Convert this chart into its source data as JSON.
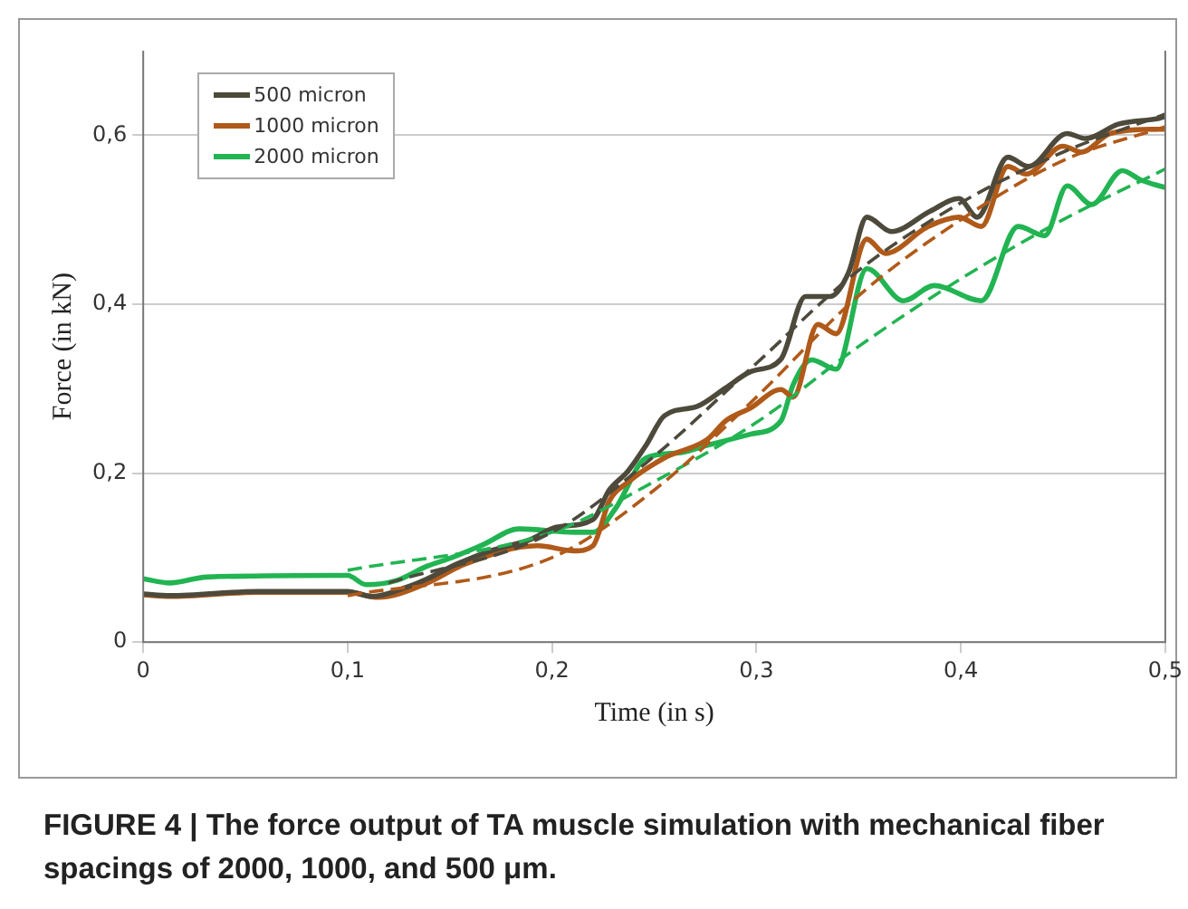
{
  "chart_data": {
    "type": "line",
    "xlabel": "Time (in s)",
    "ylabel": "Force (in kN)",
    "xlim": [
      0,
      0.5
    ],
    "ylim": [
      0,
      0.7
    ],
    "xticks": [
      {
        "value": 0,
        "label": "0"
      },
      {
        "value": 0.1,
        "label": "0,1"
      },
      {
        "value": 0.2,
        "label": "0,2"
      },
      {
        "value": 0.3,
        "label": "0,3"
      },
      {
        "value": 0.4,
        "label": "0,4"
      },
      {
        "value": 0.5,
        "label": "0,5"
      }
    ],
    "yticks": [
      {
        "value": 0,
        "label": "0"
      },
      {
        "value": 0.2,
        "label": "0,2"
      },
      {
        "value": 0.4,
        "label": "0,4"
      },
      {
        "value": 0.6,
        "label": "0,6"
      }
    ],
    "grid": "y",
    "legend": "top left",
    "marker": "none",
    "line_style": "solid",
    "annotations": [
      "FIGURE 4 | The force output of TA muscle simulation with mechanical fiber spacings of 2000, 1000, and 500 μm."
    ],
    "series": [
      {
        "name": "500 micron",
        "color": "#4d4a3c",
        "x": [
          0,
          0.013,
          0.056,
          0.1,
          0.112,
          0.13,
          0.139,
          0.154,
          0.17,
          0.19,
          0.202,
          0.22,
          0.228,
          0.237,
          0.246,
          0.255,
          0.271,
          0.285,
          0.297,
          0.312,
          0.324,
          0.336,
          0.345,
          0.354,
          0.366,
          0.385,
          0.399,
          0.408,
          0.423,
          0.433,
          0.452,
          0.461,
          0.477,
          0.497,
          0.5
        ],
        "values": [
          0.057,
          0.055,
          0.06,
          0.06,
          0.054,
          0.066,
          0.075,
          0.093,
          0.108,
          0.122,
          0.136,
          0.145,
          0.18,
          0.202,
          0.233,
          0.268,
          0.279,
          0.301,
          0.32,
          0.335,
          0.409,
          0.409,
          0.437,
          0.503,
          0.486,
          0.51,
          0.525,
          0.503,
          0.574,
          0.563,
          0.602,
          0.596,
          0.613,
          0.62,
          0.622
        ]
      },
      {
        "name": "1000 micron",
        "color": "#b05a1a",
        "x": [
          0,
          0.013,
          0.056,
          0.1,
          0.115,
          0.139,
          0.157,
          0.193,
          0.211,
          0.22,
          0.228,
          0.237,
          0.255,
          0.276,
          0.285,
          0.297,
          0.312,
          0.318,
          0.33,
          0.339,
          0.354,
          0.363,
          0.384,
          0.399,
          0.41,
          0.423,
          0.432,
          0.45,
          0.459,
          0.473,
          0.497,
          0.5
        ],
        "values": [
          0.056,
          0.054,
          0.059,
          0.059,
          0.053,
          0.07,
          0.092,
          0.114,
          0.108,
          0.114,
          0.167,
          0.189,
          0.218,
          0.24,
          0.262,
          0.277,
          0.299,
          0.29,
          0.376,
          0.365,
          0.477,
          0.46,
          0.492,
          0.503,
          0.492,
          0.563,
          0.554,
          0.587,
          0.58,
          0.602,
          0.607,
          0.607
        ]
      },
      {
        "name": "2000 micron",
        "color": "#22b452",
        "x": [
          0,
          0.013,
          0.031,
          0.1,
          0.109,
          0.124,
          0.139,
          0.151,
          0.166,
          0.184,
          0.211,
          0.22,
          0.231,
          0.246,
          0.262,
          0.276,
          0.297,
          0.312,
          0.318,
          0.327,
          0.339,
          0.354,
          0.372,
          0.387,
          0.41,
          0.428,
          0.441,
          0.452,
          0.464,
          0.479,
          0.488,
          0.497,
          0.5
        ],
        "values": [
          0.075,
          0.07,
          0.077,
          0.079,
          0.068,
          0.073,
          0.09,
          0.1,
          0.115,
          0.134,
          0.13,
          0.13,
          0.158,
          0.218,
          0.224,
          0.233,
          0.246,
          0.262,
          0.305,
          0.334,
          0.323,
          0.442,
          0.404,
          0.422,
          0.404,
          0.492,
          0.481,
          0.54,
          0.518,
          0.558,
          0.547,
          0.54,
          0.538
        ]
      },
      {
        "line_style": "dashed",
        "color": "#4d4a3c",
        "x": [
          0.12,
          0.2,
          0.25,
          0.3,
          0.35,
          0.4,
          0.45,
          0.5
        ],
        "values": [
          0.07,
          0.13,
          0.22,
          0.33,
          0.44,
          0.52,
          0.58,
          0.625
        ]
      },
      {
        "line_style": "dashed",
        "color": "#b05a1a",
        "x": [
          0.1,
          0.2,
          0.25,
          0.3,
          0.35,
          0.4,
          0.45,
          0.5
        ],
        "values": [
          0.055,
          0.1,
          0.18,
          0.29,
          0.41,
          0.5,
          0.57,
          0.61
        ]
      },
      {
        "line_style": "dashed",
        "color": "#22b452",
        "x": [
          0.1,
          0.2,
          0.25,
          0.3,
          0.35,
          0.4,
          0.45,
          0.5
        ],
        "values": [
          0.085,
          0.13,
          0.19,
          0.26,
          0.35,
          0.43,
          0.5,
          0.56
        ]
      }
    ]
  }
}
